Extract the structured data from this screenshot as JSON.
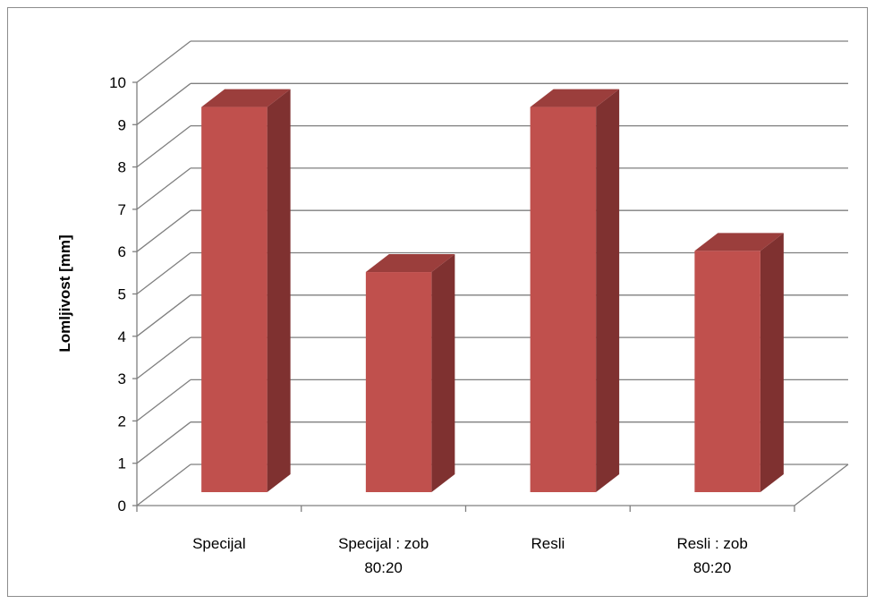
{
  "chart_data": {
    "type": "bar",
    "title": "",
    "xlabel": "",
    "ylabel": "Lomljivost [mm]",
    "categories": [
      [
        "Specijal"
      ],
      [
        "Specijal : zob",
        "80:20"
      ],
      [
        "Resli"
      ],
      [
        "Resli : zob",
        "80:20"
      ]
    ],
    "values": [
      9.1,
      5.2,
      9.1,
      5.7
    ],
    "ylim": [
      0,
      10
    ],
    "yticks": [
      "0",
      "1",
      "2",
      "3",
      "4",
      "5",
      "6",
      "7",
      "8",
      "9",
      "10"
    ],
    "grid": true,
    "legend": "none",
    "style": "3d-column",
    "colors": {
      "bar_front": "#c0504d",
      "bar_side": "#7f3130",
      "bar_top": "#9b3e3c",
      "grid": "#7f7f7f",
      "frame": "#8c8c8c"
    }
  }
}
